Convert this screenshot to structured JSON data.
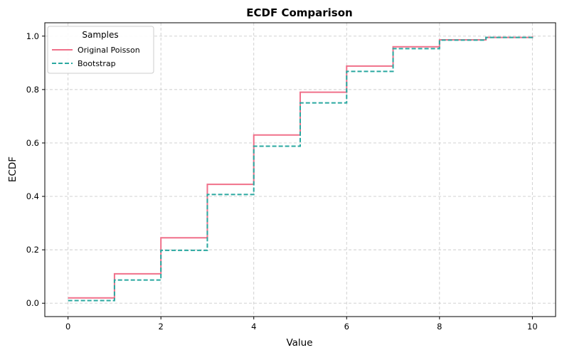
{
  "chart_data": {
    "type": "line",
    "step": "post",
    "title": "ECDF Comparison",
    "xlabel": "Value",
    "ylabel": "ECDF",
    "xlim": [
      -0.5,
      10.5
    ],
    "ylim": [
      -0.05,
      1.05
    ],
    "xticks": [
      0,
      2,
      4,
      6,
      8,
      10
    ],
    "yticks": [
      0.0,
      0.2,
      0.4,
      0.6,
      0.8,
      1.0
    ],
    "xtick_labels": [
      "0",
      "2",
      "4",
      "6",
      "8",
      "10"
    ],
    "ytick_labels": [
      "0.0",
      "0.2",
      "0.4",
      "0.6",
      "0.8",
      "1.0"
    ],
    "grid": true,
    "legend": {
      "title": "Samples",
      "position": "upper-left"
    },
    "series": [
      {
        "name": "Original Poisson",
        "color": "#f0708a",
        "dash": "solid",
        "x": [
          0,
          1,
          2,
          3,
          4,
          5,
          6,
          7,
          8,
          9,
          10
        ],
        "y": [
          0.02,
          0.11,
          0.245,
          0.445,
          0.63,
          0.79,
          0.888,
          0.96,
          0.986,
          0.995,
          1.0
        ]
      },
      {
        "name": "Bootstrap",
        "color": "#2aa8a0",
        "dash": "dashed",
        "x": [
          0,
          1,
          2,
          3,
          4,
          5,
          6,
          7,
          8,
          9,
          10
        ],
        "y": [
          0.01,
          0.087,
          0.198,
          0.407,
          0.588,
          0.75,
          0.868,
          0.953,
          0.985,
          0.995,
          1.0
        ]
      }
    ]
  }
}
